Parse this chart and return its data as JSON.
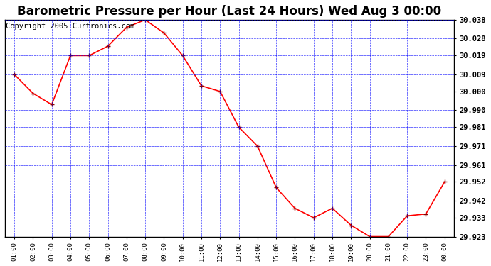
{
  "title": "Barometric Pressure per Hour (Last 24 Hours) Wed Aug 3 00:00",
  "copyright": "Copyright 2005 Curtronics.com",
  "x_labels": [
    "01:00",
    "02:00",
    "03:00",
    "04:00",
    "05:00",
    "06:00",
    "07:00",
    "08:00",
    "09:00",
    "10:00",
    "11:00",
    "12:00",
    "13:00",
    "14:00",
    "15:00",
    "16:00",
    "17:00",
    "18:00",
    "19:00",
    "20:00",
    "21:00",
    "22:00",
    "23:00",
    "00:00"
  ],
  "y_values": [
    30.009,
    29.999,
    29.993,
    30.019,
    30.019,
    30.024,
    30.034,
    30.038,
    30.031,
    30.019,
    30.003,
    30.0,
    29.981,
    29.971,
    29.949,
    29.938,
    29.933,
    29.938,
    29.929,
    29.923,
    29.923,
    29.934,
    29.935,
    29.952
  ],
  "ylim_min": 29.923,
  "ylim_max": 30.038,
  "yticks": [
    30.038,
    30.028,
    30.019,
    30.009,
    30.0,
    29.99,
    29.981,
    29.971,
    29.961,
    29.952,
    29.942,
    29.933,
    29.923
  ],
  "line_color": "red",
  "marker_color": "darkred",
  "bg_color": "#ffffff",
  "fig_bg_color": "#ffffff",
  "grid_color": "blue",
  "title_fontsize": 12,
  "copyright_fontsize": 7.5
}
